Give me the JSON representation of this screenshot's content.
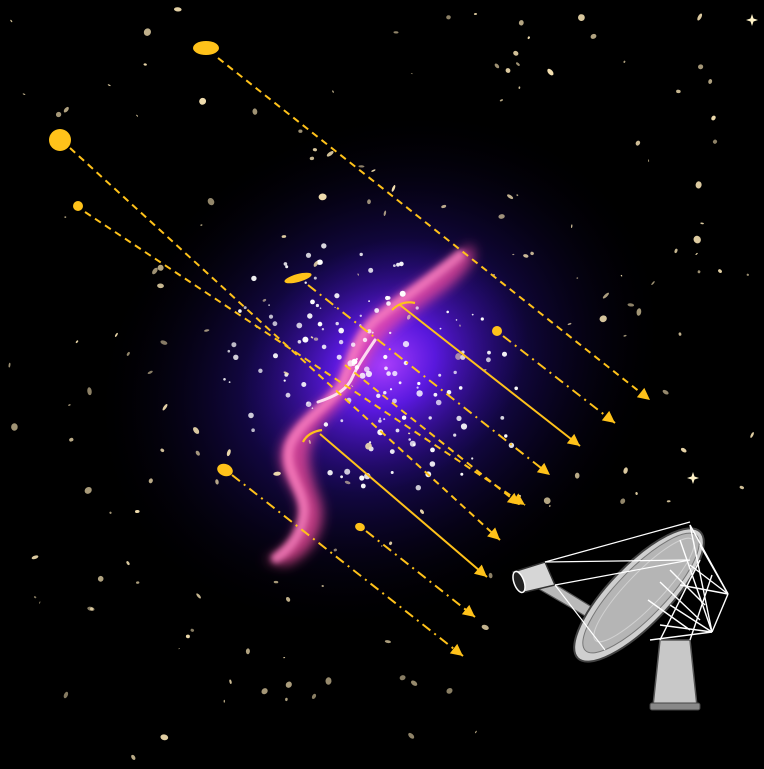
{
  "diagram": {
    "background_color": "#000000",
    "cluster_glow_color": "#6a1cff",
    "radio_jet_color": "#ff4fa3",
    "source_color": "#ffc21a",
    "field_galaxy_color": "#f3dfb0",
    "telescope_color": "#c8c8c8",
    "arrow_styles": [
      "solid",
      "dashed",
      "dash-dot"
    ],
    "icons": [
      "radio-telescope-icon",
      "background-source-icon",
      "field-galaxy-icon",
      "arrowhead-icon"
    ]
  }
}
